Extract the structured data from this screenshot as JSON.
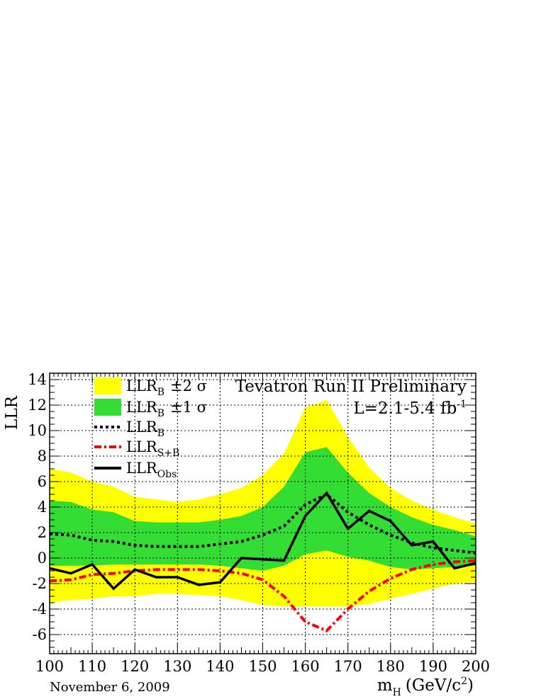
{
  "chart_data": {
    "type": "line",
    "title": "",
    "xlabel": "m",
    "xlabel_sub": "H",
    "xlabel_unit": "(GeV/c",
    "xlabel_unit_sup": "2",
    "xlabel_unit_close": ")",
    "ylabel": "LLR",
    "xlim": [
      100,
      200
    ],
    "ylim": [
      -7.5,
      14.5
    ],
    "grid": true,
    "x_ticks": [
      100,
      110,
      120,
      130,
      140,
      150,
      160,
      170,
      180,
      190,
      200
    ],
    "y_ticks": [
      -6,
      -4,
      -2,
      0,
      2,
      4,
      6,
      8,
      10,
      12,
      14
    ],
    "annotations": {
      "experiment": "Tevatron Run II Preliminary",
      "luminosity": "L=2.1-5.4 fb",
      "luminosity_sup": "-1",
      "date": "November 6, 2009"
    },
    "legend": {
      "placement": "top-left",
      "entries": [
        {
          "key": "band2",
          "text": "LLR",
          "sub": "B",
          "suffix": "±2 σ",
          "color": "#ffff00"
        },
        {
          "key": "band1",
          "text": "LLR",
          "sub": "B",
          "suffix": "±1 σ",
          "color": "#33dd33"
        },
        {
          "key": "llr_b",
          "text": "LLR",
          "sub": "B",
          "suffix": "",
          "color": "#000000"
        },
        {
          "key": "llr_sb",
          "text": "LLR",
          "sub": "S+B",
          "suffix": "",
          "color": "#ff0000"
        },
        {
          "key": "llr_obs",
          "text": "LLR",
          "sub": "Obs",
          "suffix": "",
          "color": "#000000"
        }
      ]
    },
    "x": [
      100,
      105,
      110,
      115,
      120,
      125,
      130,
      135,
      140,
      145,
      150,
      155,
      160,
      165,
      170,
      175,
      180,
      185,
      190,
      195,
      200
    ],
    "series": [
      {
        "key": "band2_upper",
        "values": [
          7.0,
          6.7,
          6.0,
          5.6,
          4.8,
          4.6,
          4.4,
          4.6,
          5.0,
          5.5,
          6.5,
          8.2,
          11.8,
          12.4,
          9.5,
          7.1,
          5.5,
          4.5,
          3.8,
          3.2,
          2.7
        ]
      },
      {
        "key": "band2_lower",
        "values": [
          -3.5,
          -3.3,
          -3.2,
          -3.0,
          -3.0,
          -2.8,
          -2.8,
          -2.9,
          -3.0,
          -3.3,
          -3.7,
          -3.8,
          -3.8,
          -3.8,
          -3.8,
          -3.6,
          -3.2,
          -2.8,
          -2.4,
          -2.0,
          -1.9
        ]
      },
      {
        "key": "band1_upper",
        "values": [
          4.5,
          4.4,
          3.8,
          3.6,
          2.9,
          2.8,
          2.8,
          2.8,
          3.0,
          3.3,
          4.0,
          5.6,
          8.3,
          8.7,
          6.7,
          5.1,
          4.0,
          3.2,
          2.6,
          2.2,
          1.7
        ]
      },
      {
        "key": "band1_lower",
        "values": [
          -0.6,
          -0.6,
          -0.6,
          -0.5,
          -0.5,
          -0.5,
          -0.5,
          -0.5,
          -0.6,
          -0.8,
          -1.0,
          -0.6,
          0.3,
          0.6,
          0.1,
          -0.2,
          -0.7,
          -0.9,
          -0.8,
          -0.7,
          -0.6
        ]
      },
      {
        "key": "llr_b",
        "name": "LLR_B",
        "values": [
          1.9,
          1.8,
          1.4,
          1.3,
          1.0,
          0.9,
          0.9,
          0.9,
          1.1,
          1.3,
          1.8,
          2.5,
          4.2,
          5.0,
          3.6,
          2.6,
          1.8,
          1.2,
          0.8,
          0.6,
          0.4
        ]
      },
      {
        "key": "llr_sb",
        "name": "LLR_S+B",
        "values": [
          -1.8,
          -1.7,
          -1.3,
          -1.2,
          -1.0,
          -0.9,
          -0.9,
          -0.9,
          -1.0,
          -1.2,
          -1.7,
          -3.0,
          -5.0,
          -5.7,
          -4.0,
          -2.6,
          -1.6,
          -0.9,
          -0.5,
          -0.3,
          -0.2
        ]
      },
      {
        "key": "llr_obs",
        "name": "LLR_Obs",
        "values": [
          -0.8,
          -1.2,
          -0.5,
          -2.4,
          -0.9,
          -1.5,
          -1.5,
          -2.1,
          -1.9,
          0.0,
          -0.1,
          -0.2,
          3.3,
          5.1,
          2.3,
          3.7,
          2.9,
          1.0,
          1.3,
          -0.8,
          -0.4
        ]
      }
    ]
  }
}
